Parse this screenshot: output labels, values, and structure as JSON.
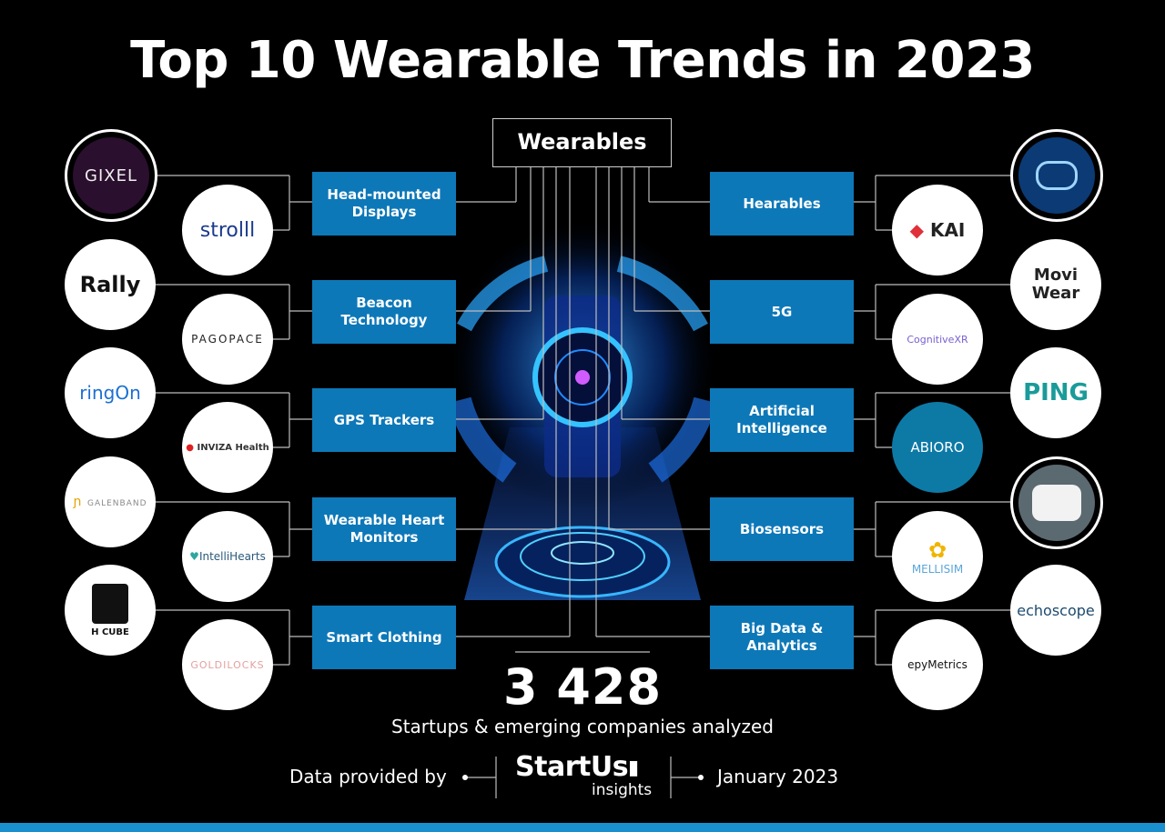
{
  "title": "Top 10 Wearable Trends in 2023",
  "hub_label": "Wearables",
  "trends_left": [
    "Head-mounted Displays",
    "Beacon Technology",
    "GPS Trackers",
    "Wearable Heart Monitors",
    "Smart Clothing"
  ],
  "trends_right": [
    "Hearables",
    "5G",
    "Artificial Intelligence",
    "Biosensors",
    "Big Data & Analytics"
  ],
  "logos_left": [
    {
      "outer": "GIXEL",
      "inner": "strolll"
    },
    {
      "outer": "Rally",
      "inner": "PAGOPACE"
    },
    {
      "outer": "ringOn",
      "inner": "INVIZA Health"
    },
    {
      "outer": "GALENBAND",
      "inner": "IntelliHearts"
    },
    {
      "outer": "H CUBE",
      "inner": "GOLDILOCKS"
    }
  ],
  "logos_right": [
    {
      "outer": "",
      "inner": "KAI"
    },
    {
      "outer": "Movi Wear",
      "inner": "CognitiveXR"
    },
    {
      "outer": "PING",
      "inner": "ABIORO"
    },
    {
      "outer": "",
      "inner": "MELLISIM"
    },
    {
      "outer": "echoscope",
      "inner": "epyMetrics"
    }
  ],
  "stat_number": "3 428",
  "stat_caption": "Startups & emerging companies analyzed",
  "footer": {
    "provided_by": "Data provided by",
    "brand_main": "StartUs",
    "brand_sub": "insights",
    "date": "January 2023"
  },
  "colors": {
    "trend_box": "#0d78b8",
    "accent": "#1a8fd0",
    "background": "#000000"
  }
}
